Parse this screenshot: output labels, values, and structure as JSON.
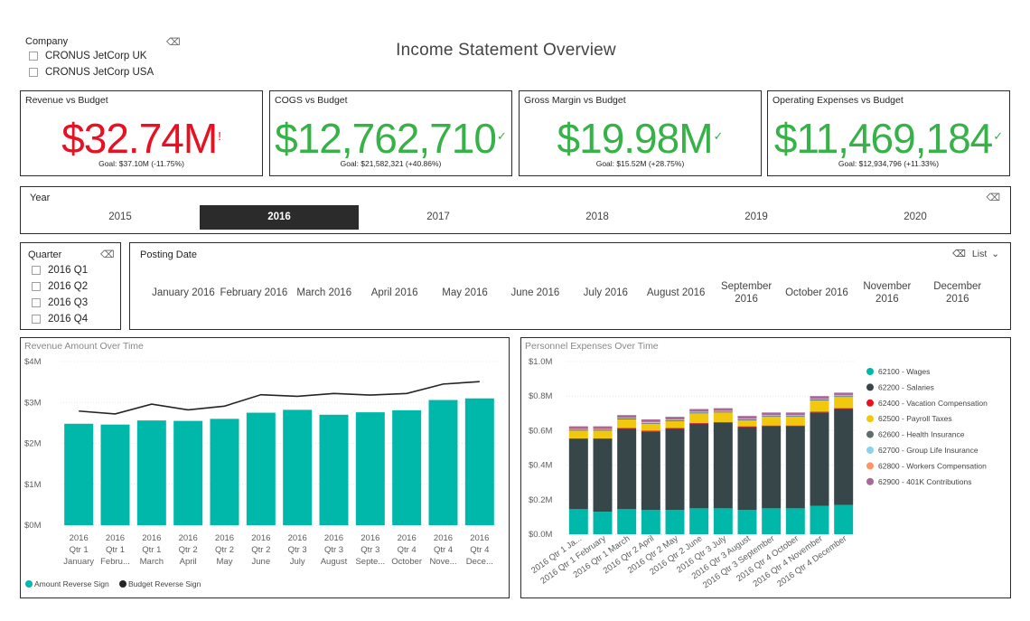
{
  "page_title": "Income Statement Overview",
  "company_slicer": {
    "title": "Company",
    "options": [
      "CRONUS JetCorp UK",
      "CRONUS JetCorp USA"
    ]
  },
  "kpis": [
    {
      "title": "Revenue vs Budget",
      "value": "$32.74M",
      "mark": "!",
      "status": "bad",
      "goal": "Goal: $37.10M (-11.75%)"
    },
    {
      "title": "COGS vs Budget",
      "value": "$12,762,710",
      "mark": "✓",
      "status": "good",
      "goal": "Goal: $21,582,321 (+40.86%)"
    },
    {
      "title": "Gross Margin vs Budget",
      "value": "$19.98M",
      "mark": "✓",
      "status": "good",
      "goal": "Goal: $15.52M (+28.75%)"
    },
    {
      "title": "Operating Expenses vs Budget",
      "value": "$11,469,184",
      "mark": "✓",
      "status": "good",
      "goal": "Goal: $12,934,796 (+11.33%)"
    }
  ],
  "year_slicer": {
    "title": "Year",
    "years": [
      "2015",
      "2016",
      "2017",
      "2018",
      "2019",
      "2020"
    ],
    "selected": "2016"
  },
  "quarter_slicer": {
    "title": "Quarter",
    "options": [
      "2016 Q1",
      "2016 Q2",
      "2016 Q3",
      "2016 Q4"
    ]
  },
  "date_slicer": {
    "title": "Posting Date",
    "mode_label": "List",
    "months": [
      "January 2016",
      "February 2016",
      "March 2016",
      "April 2016",
      "May 2016",
      "June 2016",
      "July 2016",
      "August 2016",
      "September 2016",
      "October 2016",
      "November 2016",
      "December 2016"
    ]
  },
  "colors": {
    "teal": "#00b8aa",
    "dark": "#374649",
    "red": "#e81123",
    "green": "#37b248",
    "yellow": "#f2c80f",
    "gray": "#5f6b6d",
    "lightblue": "#8ad4eb",
    "orange": "#fe9666",
    "purple": "#a66999"
  },
  "chart_data": [
    {
      "type": "bar",
      "title": "Revenue Amount Over Time",
      "categories": [
        [
          "2016",
          "Qtr 1",
          "January"
        ],
        [
          "2016",
          "Qtr 1",
          "Febru..."
        ],
        [
          "2016",
          "Qtr 1",
          "March"
        ],
        [
          "2016",
          "Qtr 2",
          "April"
        ],
        [
          "2016",
          "Qtr 2",
          "May"
        ],
        [
          "2016",
          "Qtr 2",
          "June"
        ],
        [
          "2016",
          "Qtr 3",
          "July"
        ],
        [
          "2016",
          "Qtr 3",
          "August"
        ],
        [
          "2016",
          "Qtr 3",
          "Septe..."
        ],
        [
          "2016",
          "Qtr 4",
          "October"
        ],
        [
          "2016",
          "Qtr 4",
          "Nove..."
        ],
        [
          "2016",
          "Qtr 4",
          "Dece..."
        ]
      ],
      "yticks": [
        "$0M",
        "$1M",
        "$2M",
        "$3M",
        "$4M"
      ],
      "ylim": [
        0,
        4000000
      ],
      "series": [
        {
          "name": "Amount Reverse Sign",
          "kind": "bar",
          "color": "#00b8aa",
          "values": [
            2480000,
            2460000,
            2560000,
            2550000,
            2600000,
            2750000,
            2820000,
            2700000,
            2760000,
            2810000,
            3060000,
            3100000
          ]
        },
        {
          "name": "Budget Reverse Sign",
          "kind": "line",
          "color": "#252423",
          "values": [
            2790000,
            2720000,
            2960000,
            2820000,
            2910000,
            3190000,
            3150000,
            3220000,
            3180000,
            3220000,
            3450000,
            3510000
          ]
        }
      ],
      "legend": "bottom-left"
    },
    {
      "type": "bar",
      "stacked": true,
      "title": "Personnel Expenses Over Time",
      "categories": [
        "2016 Qtr 1 Ja...",
        "2016 Qtr 1 February",
        "2016 Qtr 1 March",
        "2016 Qtr 2 April",
        "2016 Qtr 2 May",
        "2016 Qtr 2 June",
        "2016 Qtr 3 July",
        "2016 Qtr 3 August",
        "2016 Qtr 3 September",
        "2016 Qtr 4 October",
        "2016 Qtr 4 November",
        "2016 Qtr 4 December"
      ],
      "yticks": [
        "$0.0M",
        "$0.2M",
        "$0.4M",
        "$0.6M",
        "$0.8M",
        "$1.0M"
      ],
      "ylim": [
        0,
        1000000
      ],
      "series": [
        {
          "name": "62100 - Wages",
          "color": "#00b8aa",
          "values": [
            145000,
            130000,
            145000,
            140000,
            140000,
            150000,
            150000,
            140000,
            150000,
            150000,
            165000,
            170000
          ]
        },
        {
          "name": "62200 - Salaries",
          "color": "#374649",
          "values": [
            405000,
            420000,
            465000,
            455000,
            470000,
            490000,
            495000,
            480000,
            475000,
            475000,
            540000,
            555000
          ]
        },
        {
          "name": "62400 - Vacation Compensation",
          "color": "#e81123",
          "values": [
            5000,
            5000,
            5000,
            5000,
            5000,
            5000,
            5000,
            5000,
            5000,
            5000,
            5000,
            5000
          ]
        },
        {
          "name": "62500 - Payroll Taxes",
          "color": "#f2c80f",
          "values": [
            45000,
            45000,
            50000,
            40000,
            40000,
            55000,
            55000,
            35000,
            50000,
            50000,
            65000,
            65000
          ]
        },
        {
          "name": "62600 - Health Insurance",
          "color": "#5f6b6d",
          "values": [
            5000,
            5000,
            5000,
            5000,
            5000,
            5000,
            5000,
            5000,
            5000,
            5000,
            5000,
            5000
          ]
        },
        {
          "name": "62700 - Group Life Insurance",
          "color": "#8ad4eb",
          "values": [
            3000,
            3000,
            3000,
            3000,
            3000,
            3000,
            3000,
            3000,
            3000,
            3000,
            3000,
            3000
          ]
        },
        {
          "name": "62800 - Workers Compensation",
          "color": "#fe9666",
          "values": [
            2000,
            2000,
            2000,
            2000,
            2000,
            2000,
            2000,
            2000,
            2000,
            2000,
            2000,
            2000
          ]
        },
        {
          "name": "62900 - 401K Contributions",
          "color": "#a66999",
          "values": [
            15000,
            15000,
            15000,
            15000,
            15000,
            15000,
            15000,
            15000,
            15000,
            15000,
            15000,
            15000
          ]
        }
      ],
      "legend": "right"
    }
  ]
}
